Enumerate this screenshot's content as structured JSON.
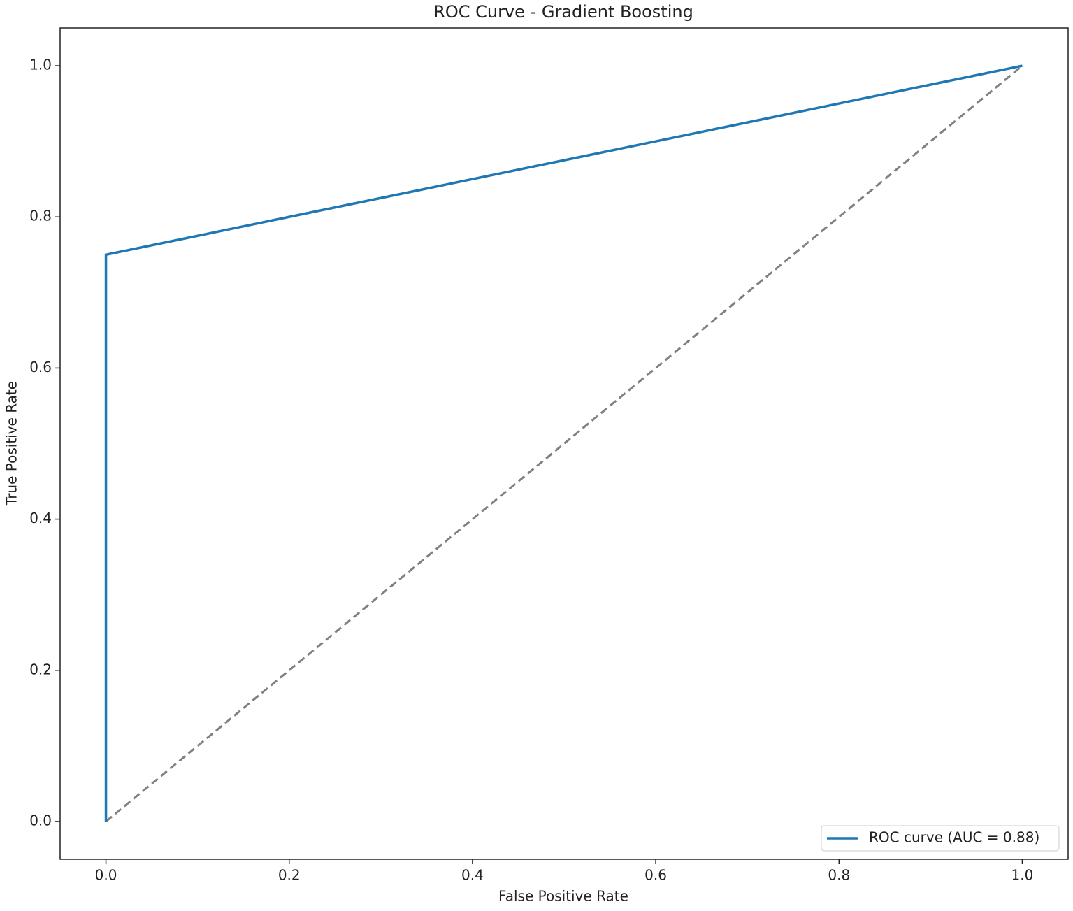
{
  "chart_data": {
    "type": "line",
    "title": "ROC Curve - Gradient Boosting",
    "x_label": "False Positive Rate",
    "y_label": "True Positive Rate",
    "xlim": [
      -0.05,
      1.05
    ],
    "ylim": [
      -0.05,
      1.05
    ],
    "xticks": [
      {
        "value": 0,
        "label": "0.0"
      },
      0.2,
      0.4,
      0.6,
      0.8,
      {
        "value": 1,
        "label": "1.0"
      }
    ],
    "yticks": [
      {
        "value": 0,
        "label": "0.0"
      },
      0.2,
      0.4,
      0.6,
      0.8,
      {
        "value": 1,
        "label": "1.0"
      }
    ],
    "grid": false,
    "legend": "lower right",
    "series": [
      {
        "name": "ROC curve (AUC = 0.88)",
        "color": "#1f77b4",
        "x": [
          0,
          0,
          1
        ],
        "values": [
          0,
          0.75,
          1
        ]
      },
      {
        "color": "#808080",
        "dashed": true,
        "x": [
          0,
          1
        ],
        "values": [
          0,
          1
        ]
      }
    ]
  }
}
